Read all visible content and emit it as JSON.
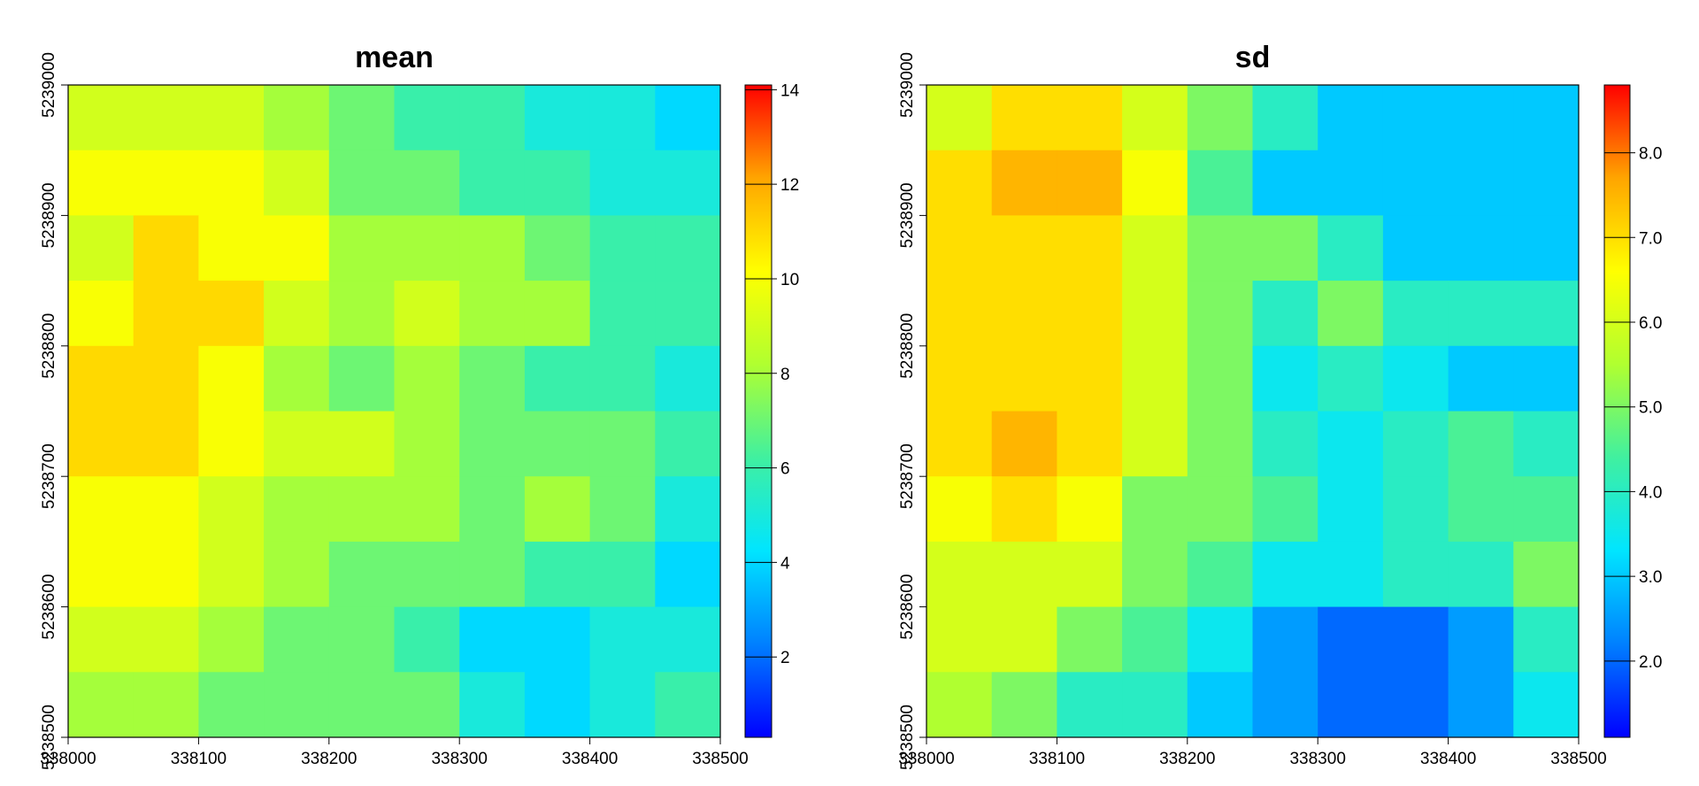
{
  "chart_data": [
    {
      "type": "heatmap",
      "title": "mean",
      "xlim": [
        338000,
        338500
      ],
      "ylim": [
        5238500,
        5239000
      ],
      "xticks": [
        338000,
        338100,
        338200,
        338300,
        338400,
        338500
      ],
      "yticks": [
        5238500,
        5238600,
        5238700,
        5238800,
        5238900,
        5239000
      ],
      "zlim": [
        0.3,
        14.1
      ],
      "zticks": [
        2,
        4,
        6,
        8,
        10,
        12,
        14
      ],
      "colors": [
        "#0000ff",
        "#0080ff",
        "#00e5ff",
        "#40f0a0",
        "#b0ff30",
        "#ffff00",
        "#ffa500",
        "#ff0000"
      ],
      "values": [
        [
          9,
          9,
          9,
          8,
          7,
          6,
          6,
          5,
          5,
          4
        ],
        [
          10,
          10,
          10,
          9,
          7,
          7,
          6,
          6,
          5,
          5
        ],
        [
          9,
          11,
          10,
          10,
          8,
          8,
          8,
          7,
          6,
          6
        ],
        [
          10,
          11,
          11,
          9,
          8,
          9,
          8,
          8,
          6,
          6
        ],
        [
          11,
          11,
          10,
          8,
          7,
          8,
          7,
          6,
          6,
          5
        ],
        [
          11,
          11,
          10,
          9,
          9,
          8,
          7,
          7,
          7,
          6
        ],
        [
          10,
          10,
          9,
          8,
          8,
          8,
          7,
          8,
          7,
          5
        ],
        [
          10,
          10,
          9,
          8,
          7,
          7,
          7,
          6,
          6,
          4
        ],
        [
          9,
          9,
          8,
          7,
          7,
          6,
          4,
          4,
          5,
          5
        ],
        [
          8,
          8,
          7,
          7,
          7,
          7,
          5,
          4,
          5,
          6
        ]
      ]
    },
    {
      "type": "heatmap",
      "title": "sd",
      "xlim": [
        338000,
        338500
      ],
      "ylim": [
        5238500,
        5239000
      ],
      "xticks": [
        338000,
        338100,
        338200,
        338300,
        338400,
        338500
      ],
      "yticks": [
        5238500,
        5238600,
        5238700,
        5238800,
        5238900,
        5239000
      ],
      "zlim": [
        1.1,
        8.8
      ],
      "zticks": [
        {
          "value": 2,
          "label": "2.0"
        },
        {
          "value": 3,
          "label": "3.0"
        },
        {
          "value": 4,
          "label": "4.0"
        },
        {
          "value": 5,
          "label": "5.0"
        },
        {
          "value": 6,
          "label": "6.0"
        },
        {
          "value": 7,
          "label": "7.0"
        },
        {
          "value": 8,
          "label": "8.0"
        }
      ],
      "colors": [
        "#0000ff",
        "#0080ff",
        "#00e5ff",
        "#40f0a0",
        "#b0ff30",
        "#ffff00",
        "#ffa500",
        "#ff0000"
      ],
      "values": [
        [
          6,
          7,
          7,
          6,
          5,
          4,
          3,
          3,
          3,
          3
        ],
        [
          7,
          7.5,
          7.5,
          6.5,
          4.5,
          3,
          3,
          3,
          3,
          3
        ],
        [
          7,
          7,
          7,
          6,
          5,
          5,
          4,
          3,
          3,
          3
        ],
        [
          7,
          7,
          7,
          6,
          5,
          4,
          5,
          4,
          4,
          4
        ],
        [
          7,
          7,
          7,
          6,
          5,
          3.5,
          4,
          3.5,
          3,
          3
        ],
        [
          7,
          7.5,
          7,
          6,
          5,
          4,
          3.5,
          4,
          4.5,
          4
        ],
        [
          6.5,
          7,
          6.5,
          5,
          5,
          4.5,
          3.5,
          4,
          4.5,
          4.5
        ],
        [
          6,
          6,
          6,
          5,
          4.5,
          3.5,
          3.5,
          4,
          4,
          5
        ],
        [
          6,
          6,
          5,
          4.5,
          3.5,
          2.5,
          2,
          2,
          2.5,
          4
        ],
        [
          5.5,
          5,
          4,
          4,
          3,
          2.5,
          2,
          2,
          2.5,
          3.5
        ]
      ]
    }
  ]
}
